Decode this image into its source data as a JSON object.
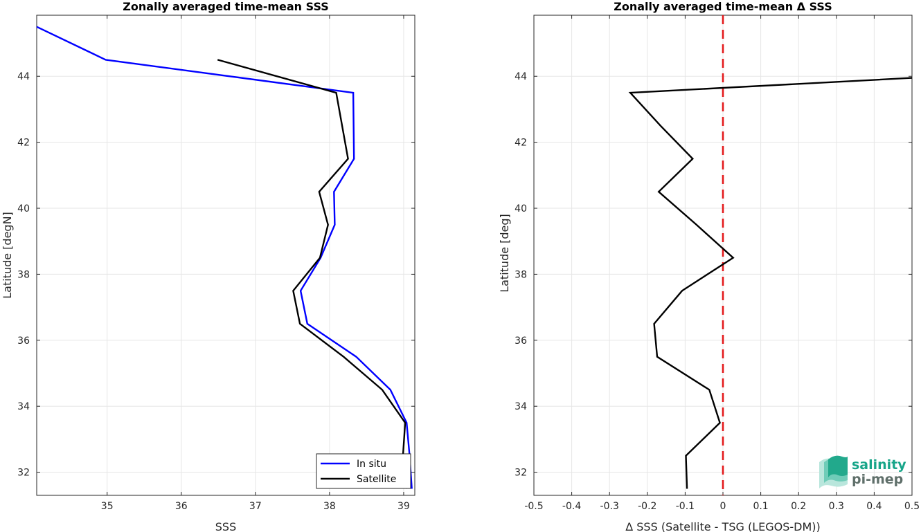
{
  "chart_data": [
    {
      "type": "line",
      "title": "Zonally averaged time-mean SSS",
      "xlabel": "SSS",
      "ylabel": "Latitude [degN]",
      "xlim": [
        34.05,
        39.15
      ],
      "ylim": [
        31.3,
        45.85
      ],
      "xticks": [
        35,
        36,
        37,
        38,
        39
      ],
      "yticks": [
        32,
        34,
        36,
        38,
        40,
        42,
        44
      ],
      "grid": true,
      "legend": "bottom-right",
      "series": [
        {
          "name": "In situ",
          "color": "#0000ff",
          "points": [
            [
              34.05,
              45.5
            ],
            [
              34.98,
              44.5
            ],
            [
              38.32,
              43.5
            ],
            [
              38.33,
              41.5
            ],
            [
              38.06,
              40.5
            ],
            [
              38.07,
              39.5
            ],
            [
              37.88,
              38.5
            ],
            [
              37.61,
              37.5
            ],
            [
              37.7,
              36.5
            ],
            [
              38.36,
              35.5
            ],
            [
              38.82,
              34.5
            ],
            [
              39.04,
              33.5
            ],
            [
              39.08,
              32.5
            ],
            [
              39.11,
              31.5
            ]
          ]
        },
        {
          "name": "Satellite",
          "color": "#000000",
          "points": [
            [
              36.49,
              44.5
            ],
            [
              38.09,
              43.5
            ],
            [
              38.25,
              41.5
            ],
            [
              37.86,
              40.5
            ],
            [
              37.98,
              39.5
            ],
            [
              37.87,
              38.5
            ],
            [
              37.51,
              37.5
            ],
            [
              37.6,
              36.5
            ],
            [
              38.19,
              35.5
            ],
            [
              38.71,
              34.5
            ],
            [
              39.02,
              33.5
            ],
            [
              38.99,
              32.5
            ],
            [
              39.05,
              31.5
            ]
          ]
        }
      ]
    },
    {
      "type": "line",
      "title": "Zonally averaged time-mean Δ SSS",
      "xlabel": "Δ SSS (Satellite - TSG (LEGOS-DM))",
      "ylabel": "Latitude [deg]",
      "xlim": [
        -0.5,
        0.5
      ],
      "ylim": [
        31.3,
        45.85
      ],
      "xticks": [
        -0.5,
        -0.4,
        -0.3,
        -0.2,
        -0.1,
        0,
        0.1,
        0.2,
        0.3,
        0.4,
        0.5
      ],
      "xticklabels": [
        "-0.5",
        "-0.4",
        "-0.3",
        "-0.2",
        "-0.1",
        "0",
        "0.1",
        "0.2",
        "0.3",
        "0.4",
        "0.5"
      ],
      "yticks": [
        32,
        34,
        36,
        38,
        40,
        42,
        44
      ],
      "grid": true,
      "reference_line": {
        "x": 0,
        "color": "#e31a1c",
        "style": "dashed"
      },
      "series": [
        {
          "color": "#000000",
          "points": [
            [
              0.5,
              43.95
            ],
            [
              -0.245,
              43.5
            ],
            [
              -0.165,
              42.5
            ],
            [
              -0.08,
              41.5
            ],
            [
              -0.17,
              40.5
            ],
            [
              -0.07,
              39.5
            ],
            [
              0.027,
              38.5
            ],
            [
              -0.108,
              37.5
            ],
            [
              -0.182,
              36.5
            ],
            [
              -0.174,
              35.5
            ],
            [
              -0.036,
              34.5
            ],
            [
              -0.008,
              33.5
            ],
            [
              -0.098,
              32.5
            ],
            [
              -0.095,
              31.5
            ]
          ]
        }
      ]
    }
  ],
  "logo": {
    "line1": "salinity",
    "line2": "pi-mep"
  },
  "colors": {
    "axis": "#262626",
    "grid": "#e6e6e6"
  }
}
